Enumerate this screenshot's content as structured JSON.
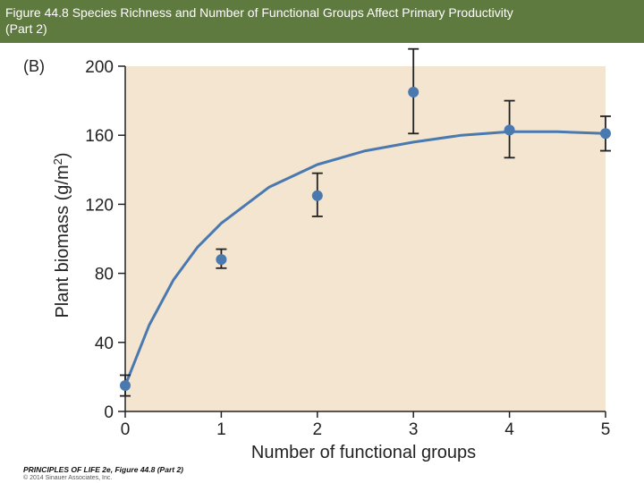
{
  "header": {
    "title_line1": "Figure 44.8 Species Richness and Number of Functional Groups Affect Primary Productivity",
    "title_line2": "(Part 2)",
    "background": "#5f7a3e",
    "text_color": "#ffffff"
  },
  "panel_label": "(B)",
  "credit": {
    "line1": "PRINCIPLES OF LIFE 2e, Figure 44.8 (Part 2)",
    "line2": "© 2014 Sinauer Associates, Inc."
  },
  "chart_data": {
    "type": "scatter",
    "xlabel": "Number of functional groups",
    "ylabel": "Plant biomass (g/m2)",
    "ylabel_parts": {
      "main": "Plant biomass (g/m",
      "sup": "2",
      "end": ")"
    },
    "xlim": [
      0,
      5
    ],
    "ylim": [
      0,
      200
    ],
    "xticks": [
      "0",
      "1",
      "2",
      "3",
      "4",
      "5"
    ],
    "yticks": [
      "0",
      "40",
      "80",
      "120",
      "160",
      "200"
    ],
    "x": [
      0,
      1,
      2,
      3,
      4,
      5
    ],
    "y": [
      15,
      88,
      125,
      185,
      163,
      161
    ],
    "error_low": [
      9,
      83,
      113,
      161,
      147,
      151
    ],
    "error_high": [
      21,
      94,
      138,
      210,
      180,
      171
    ],
    "fit_curve": {
      "x": [
        0,
        0.25,
        0.5,
        0.75,
        1,
        1.5,
        2,
        2.5,
        3,
        3.5,
        4,
        4.5,
        5
      ],
      "y": [
        15,
        50,
        76,
        95,
        109,
        130,
        143,
        151,
        156,
        160,
        162,
        162,
        161
      ]
    },
    "grid": false,
    "colors": {
      "plot_background": "#f3e5d0",
      "points": "#4a79b0",
      "curve": "#4a79b0",
      "error_bars": "#222222"
    }
  }
}
